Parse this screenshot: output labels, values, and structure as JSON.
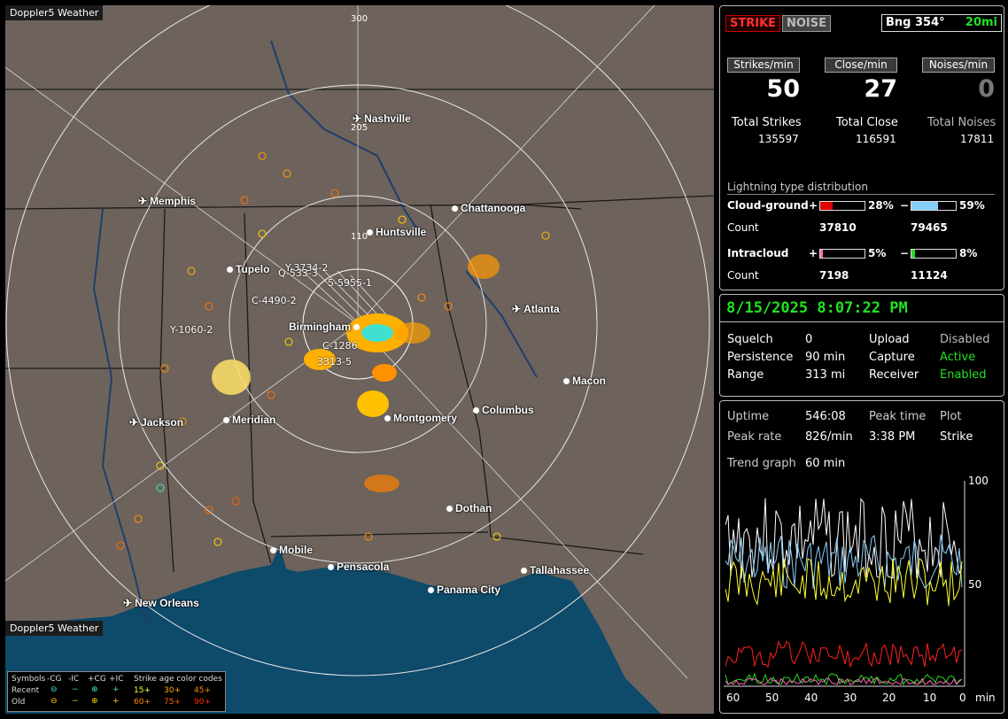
{
  "map": {
    "brand": "Doppler5 Weather",
    "rings": [
      {
        "label": "300"
      },
      {
        "label": "205"
      },
      {
        "label": "110"
      }
    ],
    "cities": [
      {
        "name": "Nashville",
        "kind": "airport"
      },
      {
        "name": "Memphis",
        "kind": "airport"
      },
      {
        "name": "Chattanooga",
        "kind": "city"
      },
      {
        "name": "Huntsville",
        "kind": "city"
      },
      {
        "name": "Tupelo",
        "kind": "city"
      },
      {
        "name": "Atlanta",
        "kind": "airport"
      },
      {
        "name": "Birmingham",
        "kind": "city"
      },
      {
        "name": "Macon",
        "kind": "city"
      },
      {
        "name": "Jackson",
        "kind": "airport"
      },
      {
        "name": "Meridian",
        "kind": "city"
      },
      {
        "name": "Montgomery",
        "kind": "city"
      },
      {
        "name": "Columbus",
        "kind": "city"
      },
      {
        "name": "Dothan",
        "kind": "city"
      },
      {
        "name": "Mobile",
        "kind": "city"
      },
      {
        "name": "Pensacola",
        "kind": "city"
      },
      {
        "name": "Tallahassee",
        "kind": "city"
      },
      {
        "name": "Panama City",
        "kind": "city"
      },
      {
        "name": "New Orleans",
        "kind": "airport"
      }
    ],
    "storm_labels": [
      "Y-3734-2",
      "Q-533-3",
      "5-5955-1",
      "C-4490-2",
      "Y-1060-2",
      "C-1286",
      "3313-5"
    ],
    "legend": {
      "header": [
        "Symbols",
        "-CG",
        "-IC",
        "+CG",
        "+IC",
        "Strike age color codes"
      ],
      "recent_label": "Recent",
      "old_label": "Old",
      "recent_ages": [
        "15+",
        "30+",
        "45+"
      ],
      "old_ages": [
        "60+",
        "75+",
        "90+"
      ],
      "recent_age_colors": [
        "#ffff33",
        "#ffb000",
        "#ff8800"
      ],
      "old_age_colors": [
        "#ff9000",
        "#ff6000",
        "#ff3000"
      ]
    }
  },
  "counters": {
    "mode_strike": "STRIKE",
    "mode_noise": "NOISE",
    "bearing": "Bng 354°",
    "range": "20mi",
    "strikes_per_min_label": "Strikes/min",
    "close_per_min_label": "Close/min",
    "noises_per_min_label": "Noises/min",
    "strikes_per_min": "50",
    "close_per_min": "27",
    "noises_per_min": "0",
    "total_strikes_label": "Total Strikes",
    "total_close_label": "Total Close",
    "total_noises_label": "Total Noises",
    "total_strikes": "135597",
    "total_close": "116591",
    "total_noises": "17811"
  },
  "distribution": {
    "title": "Lightning type distribution",
    "cg_label": "Cloud-ground",
    "ic_label": "Intracloud",
    "count_label": "Count",
    "plus": "+",
    "minus": "−",
    "cg_pos_pct": "28%",
    "cg_neg_pct": "59%",
    "ic_pos_pct": "5%",
    "ic_neg_pct": "8%",
    "cg_pos_count": "37810",
    "cg_neg_count": "79465",
    "ic_pos_count": "7198",
    "ic_neg_count": "11124",
    "cg_pos_fill": 0.28,
    "cg_neg_fill": 0.59,
    "ic_pos_fill": 0.05,
    "ic_neg_fill": 0.08
  },
  "status": {
    "datetime": "8/15/2025 8:07:22 PM",
    "squelch_label": "Squelch",
    "squelch": "0",
    "persistence_label": "Persistence",
    "persistence": "90 min",
    "range_label": "Range",
    "range": "313 mi",
    "upload_label": "Upload",
    "upload": "Disabled",
    "capture_label": "Capture",
    "capture": "Active",
    "receiver_label": "Receiver",
    "receiver": "Enabled"
  },
  "stats": {
    "uptime_label": "Uptime",
    "uptime": "546:08",
    "peak_time_label": "Peak time",
    "peak_time": "3:38 PM",
    "plot_label": "Plot",
    "plot": "Strike",
    "peak_rate_label": "Peak rate",
    "peak_rate": "826/min",
    "trend_label": "Trend graph",
    "trend": "60 min"
  },
  "trend_axis": {
    "y_ticks": [
      "100",
      "50"
    ],
    "x_ticks": [
      "60",
      "50",
      "40",
      "30",
      "20",
      "10",
      "0"
    ],
    "x_unit": "min"
  }
}
